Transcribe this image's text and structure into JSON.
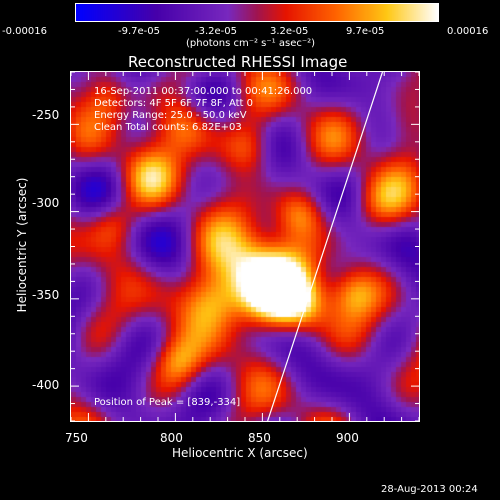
{
  "colorbar": {
    "ticks": [
      "-0.00016",
      "-9.7e-05",
      "-3.2e-05",
      "3.2e-05",
      "9.7e-05",
      "0.00016"
    ],
    "range": [
      -0.00016,
      0.00016
    ],
    "units": "(photons cm⁻² s⁻¹ asec⁻²)"
  },
  "chart_data": {
    "type": "heatmap",
    "title": "Reconstructed RHESSI Image",
    "xlabel": "Heliocentric X (arcsec)",
    "ylabel": "Heliocentric Y (arcsec)",
    "xlim": [
      740,
      940
    ],
    "ylim": [
      -420,
      -220
    ],
    "xticks": [
      750,
      800,
      850,
      900
    ],
    "yticks": [
      -250,
      -300,
      -350,
      -400
    ],
    "colormap": "blue-purple-red-yellow-white",
    "value_range": [
      -0.00016,
      0.00016
    ],
    "limb_line": [
      [
        853,
        -420
      ],
      [
        919,
        -220
      ]
    ],
    "annotations": {
      "time_range": "16-Sep-2011 00:37:00.000 to 00:41:26.000",
      "detectors": "Detectors: 4F 5F 6F 7F 8F, Att 0",
      "energy": "Energy Range: 25.0 - 50.0 keV",
      "clean": "Clean    Total counts: 6.82E+03",
      "peak": "Position of Peak = [839,-334]"
    },
    "peak": [
      839,
      -334
    ]
  },
  "footer": {
    "date": "28-Aug-2013 00:24"
  }
}
